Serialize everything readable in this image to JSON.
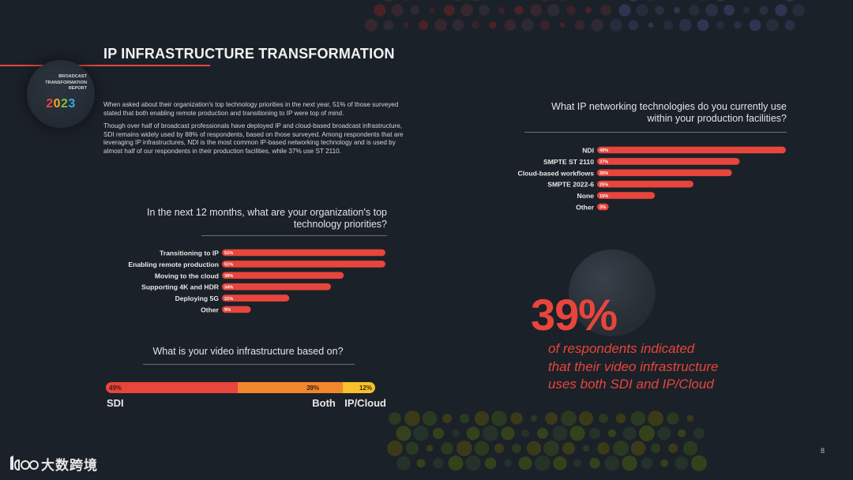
{
  "page": {
    "title": "IP INFRASTRUCTURE TRANSFORMATION",
    "page_number": "8",
    "accent_color": "#e8453c"
  },
  "badge": {
    "line1": "BROADCAST",
    "line2": "TRANSFORMATION",
    "line3": "REPORT",
    "year_digits": [
      "2",
      "0",
      "2",
      "3"
    ]
  },
  "intro": {
    "paragraph1": "When asked about their organization's top technology priorities in the next year, 51% of those surveyed stated that both enabling remote production and transitioning to IP were top of mind.",
    "paragraph2": "Though over half of broadcast professionals have deployed IP and cloud-based broadcast infrastructure, SDI remains widely used by 88% of respondents, based on those surveyed. Among respondents that are leveraging IP infrastructures, NDI is the most common IP-based networking technology and is used by almost half of our respondents in their production facilities, while 37% use ST 2110."
  },
  "callout": {
    "value": "39%",
    "line1": "of respondents indicated",
    "line2": "that their video infrastructure",
    "line3": "uses both SDI and IP/Cloud"
  },
  "logo": {
    "text": "大数跨境",
    "icon": "brand-mark-icon"
  },
  "chart_data": [
    {
      "id": "priorities",
      "type": "bar",
      "orientation": "horizontal",
      "title_line1": "In the next 12 months, what are your organization's top",
      "title_line2": "technology priorities?",
      "categories": [
        "Transitioning to IP",
        "Enabling remote production",
        "Moving to the cloud",
        "Supporting 4K and HDR",
        "Deploying 5G",
        "Other"
      ],
      "values": [
        51,
        51,
        38,
        34,
        21,
        9
      ],
      "value_labels": [
        "51%",
        "51%",
        "38%",
        "34%",
        "21%",
        "9%"
      ],
      "xlim": [
        0,
        51
      ],
      "bar_color": "#e8453c",
      "grid": false
    },
    {
      "id": "networking",
      "type": "bar",
      "orientation": "horizontal",
      "title_line1": "What IP networking technologies do you currently use",
      "title_line2": "within your production facilities?",
      "categories": [
        "NDI",
        "SMPTE ST 2110",
        "Cloud-based workflows",
        "SMPTE 2022-6",
        "None",
        "Other"
      ],
      "values": [
        49,
        37,
        35,
        25,
        15,
        3
      ],
      "value_labels": [
        "49%",
        "37%",
        "35%",
        "25%",
        "15%",
        "3%"
      ],
      "xlim": [
        0,
        49
      ],
      "bar_color": "#e8453c",
      "grid": false
    },
    {
      "id": "infrastructure",
      "type": "bar",
      "orientation": "stacked-horizontal",
      "title": "What is your video infrastructure based on?",
      "categories": [
        "SDI",
        "Both",
        "IP/Cloud"
      ],
      "values": [
        49,
        39,
        12
      ],
      "value_labels": [
        "49%",
        "39%",
        "12%"
      ],
      "colors": [
        "#e8453c",
        "#f2862d",
        "#f6c12b"
      ],
      "xlim": [
        0,
        100
      ]
    }
  ]
}
